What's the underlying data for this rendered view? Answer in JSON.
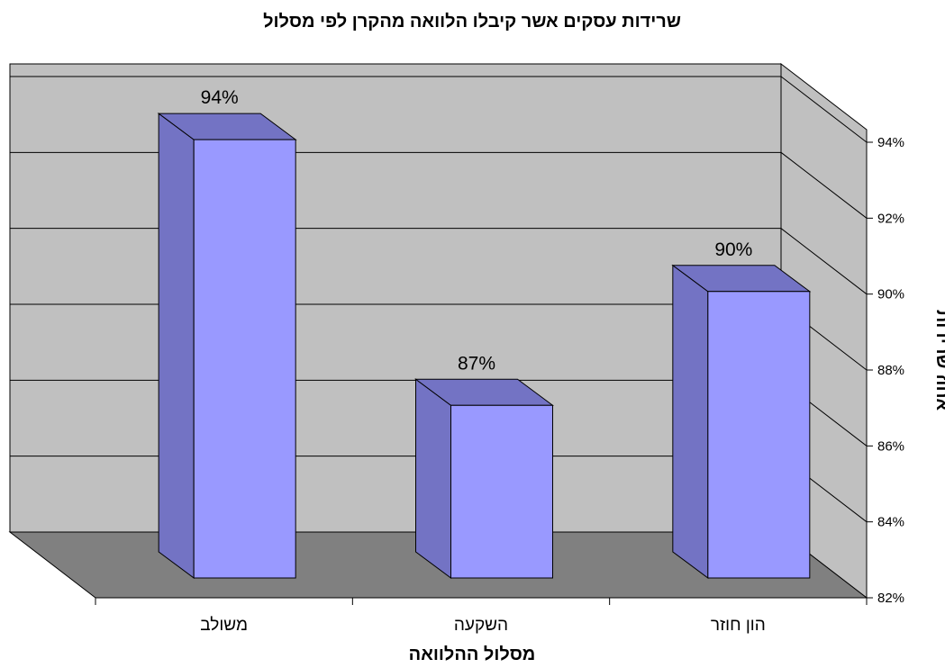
{
  "chart_data": {
    "type": "bar",
    "title": "שרידות עסקים אשר קיבלו הלוואה מהקרן לפי מסלול",
    "xlabel": "מסלול ההלוואה",
    "ylabel": "אחוז שרידות",
    "categories": [
      "משולב",
      "השקעה",
      "הון חוזר"
    ],
    "values": [
      94,
      87,
      90
    ],
    "data_labels": [
      "94%",
      "87%",
      "90%"
    ],
    "ylim": [
      82,
      94
    ],
    "yticks": [
      "82%",
      "84%",
      "86%",
      "88%",
      "90%",
      "92%",
      "94%"
    ],
    "grid": true,
    "legend": "none",
    "three_d": true
  },
  "colors": {
    "bar_front": "#9999ff",
    "bar_side": "#7373c4",
    "bar_top": "#7373c4",
    "back_wall": "#c0c0c0",
    "side_wall": "#c0c0c0",
    "floor": "#808080"
  }
}
